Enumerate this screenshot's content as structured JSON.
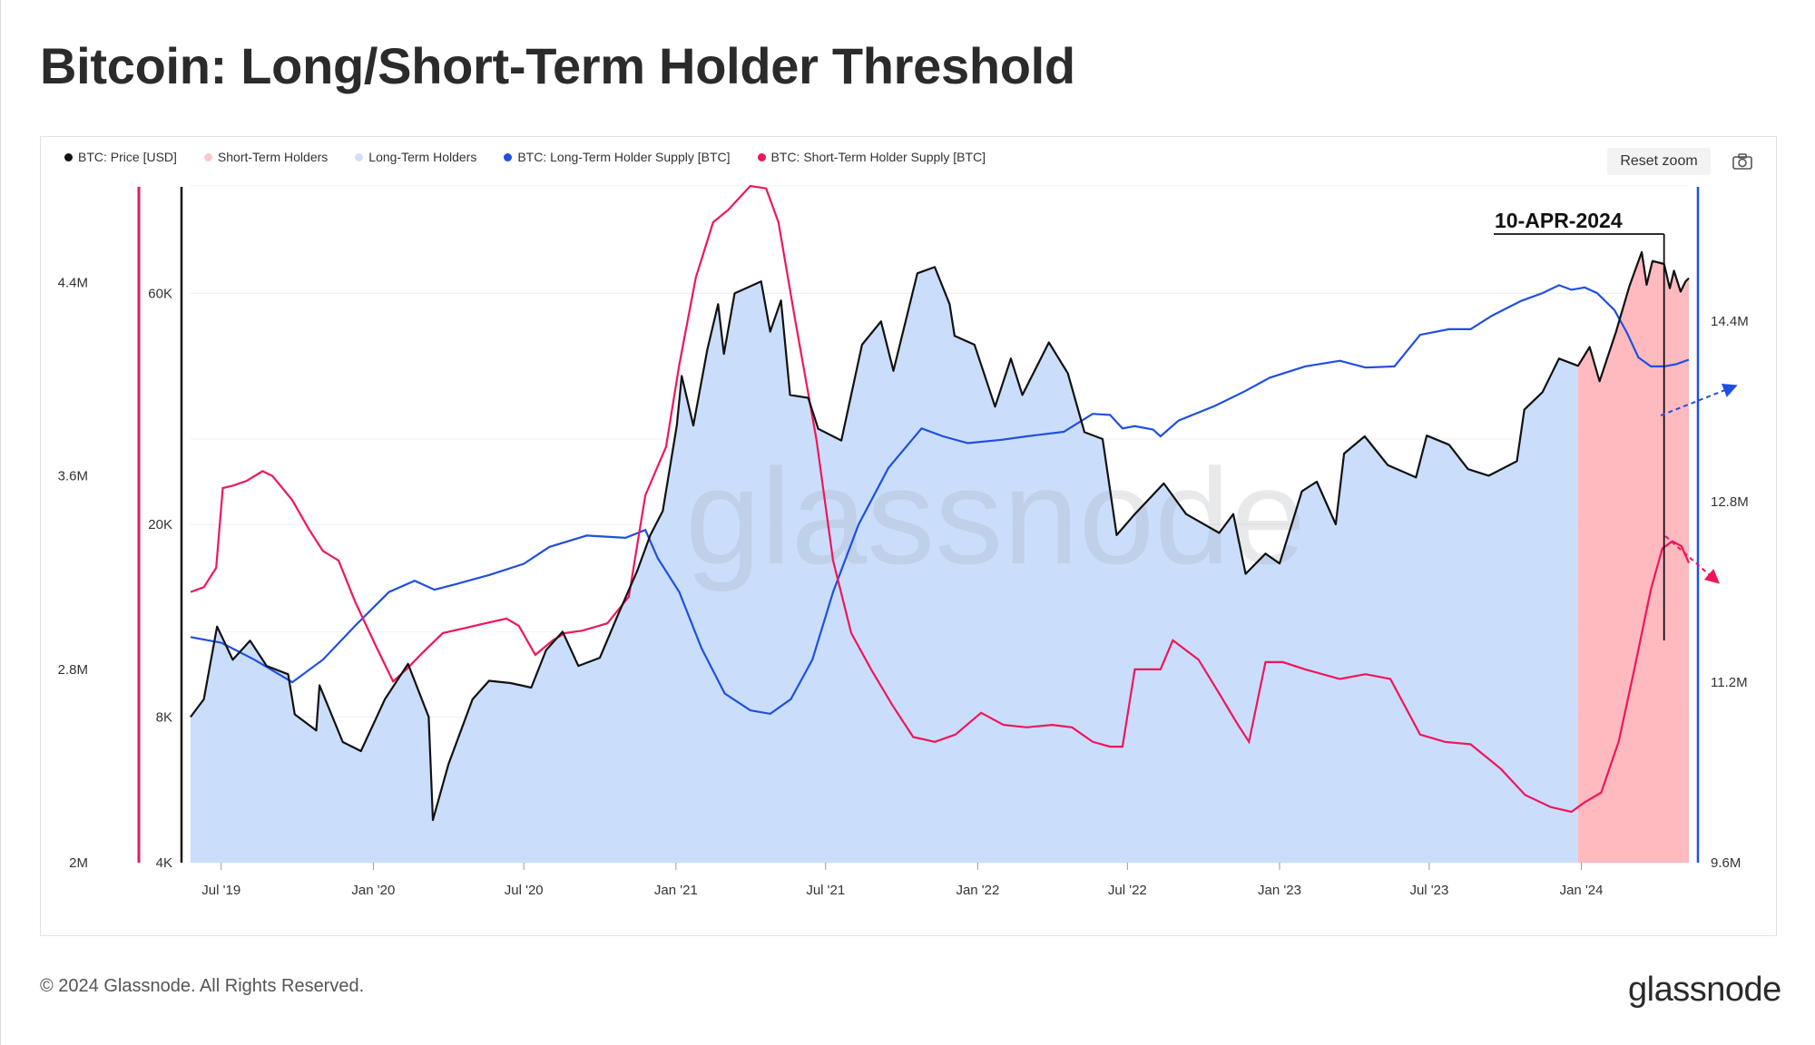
{
  "title": "Bitcoin: Long/Short-Term Holder Threshold",
  "copyright": "© 2024 Glassnode. All Rights Reserved.",
  "brand": "glassnode",
  "watermark": "glassnode",
  "toolbar": {
    "reset_zoom_label": "Reset zoom",
    "camera_icon": "camera-icon"
  },
  "colors": {
    "price": "#111111",
    "sth_area": "#ffb3b8",
    "lth_area": "#c7dcfb",
    "lth_supply": "#1f4fe0",
    "sth_supply": "#f0165a"
  },
  "legend": [
    {
      "label": "BTC: Price [USD]",
      "color": "#111111"
    },
    {
      "label": "Short-Term Holders",
      "color": "#ffc9cc"
    },
    {
      "label": "Long-Term Holders",
      "color": "#cfe0fb"
    },
    {
      "label": "BTC: Long-Term Holder Supply [BTC]",
      "color": "#1f4fe0"
    },
    {
      "label": "BTC: Short-Term Holder Supply [BTC]",
      "color": "#f0165a"
    }
  ],
  "chart_data": {
    "type": "line",
    "x_ticks": [
      "Jul '19",
      "Jan '20",
      "Jul '20",
      "Jan '21",
      "Jul '21",
      "Jan '22",
      "Jul '22",
      "Jan '23",
      "Jul '23",
      "Jan '24"
    ],
    "x_tick_dates": [
      "2019-07-01",
      "2020-01-01",
      "2020-07-01",
      "2021-01-01",
      "2021-07-01",
      "2022-01-01",
      "2022-07-01",
      "2023-01-01",
      "2023-07-01",
      "2024-01-01"
    ],
    "x_range": [
      "2019-05-25",
      "2024-05-10"
    ],
    "price_axis": {
      "scale": "log",
      "ticks": [
        "4K",
        "8K",
        "20K",
        "60K"
      ],
      "tick_values": [
        4000,
        8000,
        20000,
        60000
      ],
      "range": [
        4000,
        100000
      ]
    },
    "sth_axis": {
      "ticks": [
        "2M",
        "2.8M",
        "3.6M",
        "4.4M"
      ],
      "tick_values": [
        2000000,
        2800000,
        3600000,
        4400000
      ],
      "range": [
        2000000,
        4800000
      ]
    },
    "lth_axis": {
      "ticks": [
        "9.6M",
        "11.2M",
        "12.8M",
        "14.4M"
      ],
      "tick_values": [
        9600000,
        11200000,
        12800000,
        14400000
      ],
      "range": [
        9600000,
        15600000
      ]
    },
    "annotation": {
      "label": "10-APR-2024",
      "date": "2024-04-10"
    },
    "sth_region_start": "2023-12-28",
    "series": [
      {
        "name": "BTC: Price [USD]",
        "axis": "price",
        "points": [
          [
            "2019-05-25",
            8000
          ],
          [
            "2019-06-10",
            8700
          ],
          [
            "2019-06-26",
            12300
          ],
          [
            "2019-07-15",
            10500
          ],
          [
            "2019-08-05",
            11500
          ],
          [
            "2019-08-25",
            10200
          ],
          [
            "2019-09-20",
            9800
          ],
          [
            "2019-09-28",
            8100
          ],
          [
            "2019-10-24",
            7500
          ],
          [
            "2019-10-28",
            9300
          ],
          [
            "2019-11-25",
            7100
          ],
          [
            "2019-12-17",
            6800
          ],
          [
            "2020-01-15",
            8700
          ],
          [
            "2020-02-12",
            10300
          ],
          [
            "2020-03-08",
            8000
          ],
          [
            "2020-03-13",
            4900
          ],
          [
            "2020-04-01",
            6400
          ],
          [
            "2020-04-30",
            8700
          ],
          [
            "2020-05-20",
            9500
          ],
          [
            "2020-06-15",
            9400
          ],
          [
            "2020-07-10",
            9200
          ],
          [
            "2020-07-28",
            11000
          ],
          [
            "2020-08-17",
            12000
          ],
          [
            "2020-09-05",
            10200
          ],
          [
            "2020-10-01",
            10600
          ],
          [
            "2020-10-22",
            12900
          ],
          [
            "2020-11-15",
            16000
          ],
          [
            "2020-12-01",
            19000
          ],
          [
            "2020-12-16",
            21300
          ],
          [
            "2021-01-02",
            32000
          ],
          [
            "2021-01-08",
            40500
          ],
          [
            "2021-01-22",
            32000
          ],
          [
            "2021-02-08",
            46000
          ],
          [
            "2021-02-21",
            57000
          ],
          [
            "2021-02-28",
            45000
          ],
          [
            "2021-03-13",
            60000
          ],
          [
            "2021-04-14",
            63500
          ],
          [
            "2021-04-25",
            50000
          ],
          [
            "2021-05-08",
            58000
          ],
          [
            "2021-05-19",
            37000
          ],
          [
            "2021-06-10",
            36500
          ],
          [
            "2021-06-22",
            31500
          ],
          [
            "2021-07-20",
            29800
          ],
          [
            "2021-08-14",
            47000
          ],
          [
            "2021-09-06",
            52500
          ],
          [
            "2021-09-21",
            41500
          ],
          [
            "2021-10-20",
            66000
          ],
          [
            "2021-11-10",
            68000
          ],
          [
            "2021-11-28",
            57000
          ],
          [
            "2021-12-04",
            49000
          ],
          [
            "2021-12-28",
            47000
          ],
          [
            "2022-01-22",
            35000
          ],
          [
            "2022-02-10",
            44000
          ],
          [
            "2022-02-24",
            37000
          ],
          [
            "2022-03-28",
            47500
          ],
          [
            "2022-04-20",
            41000
          ],
          [
            "2022-05-10",
            31000
          ],
          [
            "2022-06-01",
            30000
          ],
          [
            "2022-06-18",
            19000
          ],
          [
            "2022-07-10",
            21000
          ],
          [
            "2022-08-14",
            24300
          ],
          [
            "2022-09-10",
            21000
          ],
          [
            "2022-10-20",
            19200
          ],
          [
            "2022-11-06",
            21000
          ],
          [
            "2022-11-21",
            15800
          ],
          [
            "2022-12-15",
            17400
          ],
          [
            "2023-01-01",
            16600
          ],
          [
            "2023-01-28",
            23400
          ],
          [
            "2023-02-15",
            24500
          ],
          [
            "2023-03-10",
            20000
          ],
          [
            "2023-03-20",
            28000
          ],
          [
            "2023-04-14",
            30400
          ],
          [
            "2023-05-12",
            26500
          ],
          [
            "2023-06-15",
            25000
          ],
          [
            "2023-06-28",
            30500
          ],
          [
            "2023-07-25",
            29200
          ],
          [
            "2023-08-17",
            26000
          ],
          [
            "2023-09-11",
            25200
          ],
          [
            "2023-10-15",
            27000
          ],
          [
            "2023-10-24",
            34500
          ],
          [
            "2023-11-15",
            37500
          ],
          [
            "2023-12-05",
            44000
          ],
          [
            "2023-12-28",
            42500
          ],
          [
            "2024-01-11",
            46500
          ],
          [
            "2024-01-23",
            39500
          ],
          [
            "2024-02-12",
            50000
          ],
          [
            "2024-02-28",
            62000
          ],
          [
            "2024-03-14",
            73000
          ],
          [
            "2024-03-20",
            62500
          ],
          [
            "2024-03-27",
            70000
          ],
          [
            "2024-04-10",
            69000
          ],
          [
            "2024-04-17",
            61500
          ],
          [
            "2024-04-22",
            66800
          ],
          [
            "2024-04-30",
            60500
          ],
          [
            "2024-05-06",
            63500
          ],
          [
            "2024-05-10",
            64500
          ]
        ]
      },
      {
        "name": "BTC: Long-Term Holder Supply [BTC]",
        "axis": "lth",
        "points": [
          [
            "2019-05-25",
            11600000
          ],
          [
            "2019-07-01",
            11550000
          ],
          [
            "2019-08-10",
            11400000
          ],
          [
            "2019-09-25",
            11200000
          ],
          [
            "2019-11-01",
            11400000
          ],
          [
            "2019-12-10",
            11700000
          ],
          [
            "2020-01-20",
            12000000
          ],
          [
            "2020-02-20",
            12100000
          ],
          [
            "2020-03-15",
            12020000
          ],
          [
            "2020-04-10",
            12070000
          ],
          [
            "2020-05-20",
            12150000
          ],
          [
            "2020-07-01",
            12250000
          ],
          [
            "2020-08-01",
            12400000
          ],
          [
            "2020-09-15",
            12500000
          ],
          [
            "2020-11-01",
            12480000
          ],
          [
            "2020-11-25",
            12550000
          ],
          [
            "2020-12-10",
            12300000
          ],
          [
            "2021-01-05",
            12000000
          ],
          [
            "2021-02-01",
            11500000
          ],
          [
            "2021-03-01",
            11100000
          ],
          [
            "2021-04-01",
            10950000
          ],
          [
            "2021-04-25",
            10920000
          ],
          [
            "2021-05-20",
            11050000
          ],
          [
            "2021-06-15",
            11400000
          ],
          [
            "2021-07-10",
            12000000
          ],
          [
            "2021-08-10",
            12600000
          ],
          [
            "2021-09-15",
            13100000
          ],
          [
            "2021-10-25",
            13450000
          ],
          [
            "2021-11-20",
            13380000
          ],
          [
            "2021-12-20",
            13320000
          ],
          [
            "2022-01-30",
            13350000
          ],
          [
            "2022-03-01",
            13380000
          ],
          [
            "2022-04-15",
            13420000
          ],
          [
            "2022-05-20",
            13580000
          ],
          [
            "2022-06-10",
            13570000
          ],
          [
            "2022-06-25",
            13450000
          ],
          [
            "2022-07-10",
            13470000
          ],
          [
            "2022-08-01",
            13440000
          ],
          [
            "2022-08-10",
            13380000
          ],
          [
            "2022-09-01",
            13520000
          ],
          [
            "2022-10-15",
            13650000
          ],
          [
            "2022-11-20",
            13780000
          ],
          [
            "2022-12-20",
            13900000
          ],
          [
            "2023-02-01",
            14000000
          ],
          [
            "2023-03-15",
            14050000
          ],
          [
            "2023-04-15",
            13990000
          ],
          [
            "2023-05-20",
            14000000
          ],
          [
            "2023-06-20",
            14280000
          ],
          [
            "2023-07-25",
            14330000
          ],
          [
            "2023-08-20",
            14330000
          ],
          [
            "2023-09-15",
            14450000
          ],
          [
            "2023-10-20",
            14580000
          ],
          [
            "2023-11-15",
            14650000
          ],
          [
            "2023-12-05",
            14720000
          ],
          [
            "2023-12-20",
            14680000
          ],
          [
            "2024-01-05",
            14700000
          ],
          [
            "2024-01-20",
            14650000
          ],
          [
            "2024-02-10",
            14500000
          ],
          [
            "2024-02-25",
            14300000
          ],
          [
            "2024-03-10",
            14080000
          ],
          [
            "2024-03-25",
            14000000
          ],
          [
            "2024-04-10",
            14000000
          ],
          [
            "2024-04-25",
            14020000
          ],
          [
            "2024-05-10",
            14060000
          ]
        ]
      },
      {
        "name": "BTC: Short-Term Holder Supply [BTC]",
        "axis": "sth",
        "points": [
          [
            "2019-05-25",
            3120000
          ],
          [
            "2019-06-10",
            3140000
          ],
          [
            "2019-06-25",
            3220000
          ],
          [
            "2019-07-03",
            3550000
          ],
          [
            "2019-07-15",
            3560000
          ],
          [
            "2019-08-01",
            3580000
          ],
          [
            "2019-08-20",
            3620000
          ],
          [
            "2019-09-01",
            3600000
          ],
          [
            "2019-09-25",
            3500000
          ],
          [
            "2019-10-15",
            3380000
          ],
          [
            "2019-11-01",
            3290000
          ],
          [
            "2019-11-20",
            3250000
          ],
          [
            "2019-12-10",
            3080000
          ],
          [
            "2020-01-05",
            2890000
          ],
          [
            "2020-01-25",
            2750000
          ],
          [
            "2020-02-10",
            2800000
          ],
          [
            "2020-03-01",
            2870000
          ],
          [
            "2020-03-25",
            2950000
          ],
          [
            "2020-04-20",
            2970000
          ],
          [
            "2020-05-15",
            2990000
          ],
          [
            "2020-06-10",
            3010000
          ],
          [
            "2020-06-25",
            2980000
          ],
          [
            "2020-07-15",
            2860000
          ],
          [
            "2020-08-05",
            2920000
          ],
          [
            "2020-08-20",
            2950000
          ],
          [
            "2020-09-10",
            2960000
          ],
          [
            "2020-10-10",
            2990000
          ],
          [
            "2020-11-05",
            3100000
          ],
          [
            "2020-11-25",
            3520000
          ],
          [
            "2020-12-20",
            3720000
          ],
          [
            "2021-01-05",
            4060000
          ],
          [
            "2021-01-25",
            4420000
          ],
          [
            "2021-02-15",
            4650000
          ],
          [
            "2021-03-05",
            4700000
          ],
          [
            "2021-04-01",
            4800000
          ],
          [
            "2021-04-20",
            4790000
          ],
          [
            "2021-05-05",
            4650000
          ],
          [
            "2021-05-25",
            4250000
          ],
          [
            "2021-06-20",
            3750000
          ],
          [
            "2021-07-10",
            3250000
          ],
          [
            "2021-08-01",
            2950000
          ],
          [
            "2021-08-25",
            2800000
          ],
          [
            "2021-09-20",
            2650000
          ],
          [
            "2021-10-15",
            2520000
          ],
          [
            "2021-11-10",
            2500000
          ],
          [
            "2021-12-05",
            2530000
          ],
          [
            "2022-01-05",
            2620000
          ],
          [
            "2022-02-01",
            2570000
          ],
          [
            "2022-03-01",
            2560000
          ],
          [
            "2022-04-01",
            2570000
          ],
          [
            "2022-04-25",
            2560000
          ],
          [
            "2022-05-20",
            2500000
          ],
          [
            "2022-06-10",
            2480000
          ],
          [
            "2022-06-25",
            2480000
          ],
          [
            "2022-07-10",
            2800000
          ],
          [
            "2022-08-10",
            2800000
          ],
          [
            "2022-08-25",
            2920000
          ],
          [
            "2022-09-25",
            2840000
          ],
          [
            "2022-10-20",
            2700000
          ],
          [
            "2022-11-10",
            2580000
          ],
          [
            "2022-11-25",
            2500000
          ],
          [
            "2022-12-15",
            2830000
          ],
          [
            "2023-01-05",
            2830000
          ],
          [
            "2023-02-01",
            2800000
          ],
          [
            "2023-03-15",
            2760000
          ],
          [
            "2023-04-15",
            2780000
          ],
          [
            "2023-05-15",
            2760000
          ],
          [
            "2023-06-20",
            2530000
          ],
          [
            "2023-07-20",
            2500000
          ],
          [
            "2023-08-20",
            2490000
          ],
          [
            "2023-09-25",
            2390000
          ],
          [
            "2023-10-25",
            2280000
          ],
          [
            "2023-11-25",
            2230000
          ],
          [
            "2023-12-20",
            2210000
          ],
          [
            "2024-01-05",
            2250000
          ],
          [
            "2024-01-25",
            2290000
          ],
          [
            "2024-02-15",
            2500000
          ],
          [
            "2024-03-05",
            2800000
          ],
          [
            "2024-03-25",
            3130000
          ],
          [
            "2024-04-08",
            3300000
          ],
          [
            "2024-04-20",
            3330000
          ],
          [
            "2024-05-01",
            3310000
          ],
          [
            "2024-05-10",
            3240000
          ]
        ]
      }
    ]
  }
}
